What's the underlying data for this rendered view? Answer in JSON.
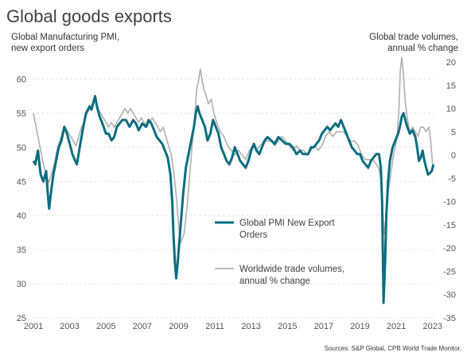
{
  "title": "Global goods exports",
  "source": "Sources: S&P Global, CPB World Trade Monitor.",
  "colors": {
    "pmi": "#0b6d80",
    "trade": "#b3b3b3",
    "grid": "#e3e3e3",
    "text": "#404040"
  },
  "chart_data": {
    "type": "line",
    "title": "Global goods exports",
    "left_axis": {
      "label_lines": [
        "Global Manufacturing PMI,",
        "new export orders"
      ],
      "range": [
        25,
        62.5
      ],
      "ticks": [
        25,
        30,
        35,
        40,
        45,
        50,
        55,
        60
      ]
    },
    "right_axis": {
      "label_lines": [
        "Global trade volumes,",
        "annual % change"
      ],
      "range": [
        -35,
        20
      ],
      "ticks": [
        -35,
        -30,
        -25,
        -20,
        -15,
        -10,
        -5,
        0,
        5,
        10,
        15,
        20
      ]
    },
    "x_axis": {
      "range": [
        2001,
        2023.1
      ],
      "ticks": [
        2001,
        2003,
        2005,
        2007,
        2009,
        2011,
        2013,
        2015,
        2017,
        2019,
        2021,
        2023
      ]
    },
    "grid": "horizontal dashed",
    "legend_placement": "middle-right",
    "series": [
      {
        "name_lines": [
          "Global PMI New Export",
          "Orders"
        ],
        "axis": "left",
        "color": "#0b6d80",
        "points": [
          [
            2001.0,
            48
          ],
          [
            2001.1,
            47.5
          ],
          [
            2001.25,
            49.5
          ],
          [
            2001.4,
            46
          ],
          [
            2001.55,
            45
          ],
          [
            2001.7,
            46.5
          ],
          [
            2001.8,
            43
          ],
          [
            2001.87,
            41
          ],
          [
            2001.95,
            43
          ],
          [
            2002.1,
            46
          ],
          [
            2002.25,
            48
          ],
          [
            2002.4,
            50
          ],
          [
            2002.55,
            51
          ],
          [
            2002.7,
            53
          ],
          [
            2002.85,
            52
          ],
          [
            2003.0,
            50.5
          ],
          [
            2003.15,
            49
          ],
          [
            2003.3,
            48
          ],
          [
            2003.4,
            47.5
          ],
          [
            2003.55,
            50
          ],
          [
            2003.75,
            53
          ],
          [
            2003.9,
            55
          ],
          [
            2004.1,
            56
          ],
          [
            2004.2,
            55.5
          ],
          [
            2004.3,
            56.5
          ],
          [
            2004.4,
            57.5
          ],
          [
            2004.5,
            56
          ],
          [
            2004.65,
            54.5
          ],
          [
            2004.8,
            53.5
          ],
          [
            2005.0,
            52
          ],
          [
            2005.15,
            52
          ],
          [
            2005.3,
            51
          ],
          [
            2005.45,
            51.5
          ],
          [
            2005.6,
            53
          ],
          [
            2005.75,
            53.5
          ],
          [
            2005.9,
            54
          ],
          [
            2006.1,
            54
          ],
          [
            2006.3,
            53
          ],
          [
            2006.5,
            54
          ],
          [
            2006.65,
            53.5
          ],
          [
            2006.8,
            52.5
          ],
          [
            2007.0,
            53.5
          ],
          [
            2007.2,
            53
          ],
          [
            2007.35,
            54
          ],
          [
            2007.5,
            53.5
          ],
          [
            2007.65,
            52.5
          ],
          [
            2007.8,
            51.5
          ],
          [
            2007.95,
            51
          ],
          [
            2008.1,
            50.5
          ],
          [
            2008.25,
            49.5
          ],
          [
            2008.4,
            48.5
          ],
          [
            2008.55,
            46
          ],
          [
            2008.65,
            42
          ],
          [
            2008.72,
            37
          ],
          [
            2008.8,
            33
          ],
          [
            2008.87,
            30.8
          ],
          [
            2008.95,
            33
          ],
          [
            2009.1,
            38
          ],
          [
            2009.25,
            43
          ],
          [
            2009.4,
            47
          ],
          [
            2009.55,
            49
          ],
          [
            2009.7,
            51
          ],
          [
            2009.85,
            53
          ],
          [
            2009.95,
            55
          ],
          [
            2010.05,
            56
          ],
          [
            2010.15,
            55
          ],
          [
            2010.3,
            54
          ],
          [
            2010.45,
            53
          ],
          [
            2010.6,
            51
          ],
          [
            2010.75,
            52
          ],
          [
            2010.9,
            54
          ],
          [
            2011.05,
            53
          ],
          [
            2011.2,
            52
          ],
          [
            2011.35,
            50
          ],
          [
            2011.5,
            49
          ],
          [
            2011.65,
            48
          ],
          [
            2011.8,
            47.5
          ],
          [
            2011.95,
            48.5
          ],
          [
            2012.1,
            50
          ],
          [
            2012.25,
            49
          ],
          [
            2012.4,
            48
          ],
          [
            2012.55,
            47.5
          ],
          [
            2012.7,
            47
          ],
          [
            2012.85,
            48
          ],
          [
            2013.0,
            49.5
          ],
          [
            2013.15,
            50.5
          ],
          [
            2013.3,
            49.5
          ],
          [
            2013.45,
            49
          ],
          [
            2013.6,
            50
          ],
          [
            2013.75,
            51
          ],
          [
            2013.9,
            51.5
          ],
          [
            2014.1,
            51
          ],
          [
            2014.3,
            50.5
          ],
          [
            2014.5,
            51.5
          ],
          [
            2014.7,
            51
          ],
          [
            2014.9,
            50.5
          ],
          [
            2015.1,
            50.5
          ],
          [
            2015.3,
            50
          ],
          [
            2015.5,
            49
          ],
          [
            2015.7,
            49.5
          ],
          [
            2015.85,
            49
          ],
          [
            2016.0,
            49
          ],
          [
            2016.15,
            49
          ],
          [
            2016.3,
            50
          ],
          [
            2016.45,
            50
          ],
          [
            2016.6,
            50.5
          ],
          [
            2016.75,
            51
          ],
          [
            2016.9,
            52
          ],
          [
            2017.05,
            52.5
          ],
          [
            2017.2,
            53
          ],
          [
            2017.35,
            52.5
          ],
          [
            2017.5,
            53
          ],
          [
            2017.65,
            53.5
          ],
          [
            2017.8,
            53
          ],
          [
            2017.95,
            54
          ],
          [
            2018.1,
            53
          ],
          [
            2018.25,
            52
          ],
          [
            2018.4,
            51
          ],
          [
            2018.55,
            50
          ],
          [
            2018.7,
            49.5
          ],
          [
            2018.85,
            49
          ],
          [
            2019.0,
            49
          ],
          [
            2019.15,
            48
          ],
          [
            2019.3,
            47.5
          ],
          [
            2019.45,
            47
          ],
          [
            2019.6,
            48
          ],
          [
            2019.75,
            48.5
          ],
          [
            2019.9,
            49
          ],
          [
            2020.05,
            49
          ],
          [
            2020.15,
            47
          ],
          [
            2020.22,
            42
          ],
          [
            2020.3,
            27.2
          ],
          [
            2020.38,
            33
          ],
          [
            2020.45,
            40
          ],
          [
            2020.55,
            45
          ],
          [
            2020.65,
            48
          ],
          [
            2020.8,
            50
          ],
          [
            2020.95,
            51
          ],
          [
            2021.1,
            52
          ],
          [
            2021.2,
            53
          ],
          [
            2021.3,
            54.5
          ],
          [
            2021.4,
            55
          ],
          [
            2021.5,
            54
          ],
          [
            2021.6,
            53
          ],
          [
            2021.75,
            52
          ],
          [
            2021.9,
            52.5
          ],
          [
            2022.05,
            51.5
          ],
          [
            2022.15,
            50
          ],
          [
            2022.25,
            48
          ],
          [
            2022.35,
            48.5
          ],
          [
            2022.45,
            49.5
          ],
          [
            2022.55,
            48
          ],
          [
            2022.65,
            47
          ],
          [
            2022.75,
            46
          ],
          [
            2022.85,
            46.2
          ],
          [
            2022.95,
            46.5
          ],
          [
            2023.05,
            47.5
          ]
        ]
      },
      {
        "name_lines": [
          "Worldwide trade volumes,",
          "annual % change"
        ],
        "axis": "right",
        "color": "#b3b3b3",
        "points": [
          [
            2001.0,
            9
          ],
          [
            2001.1,
            7
          ],
          [
            2001.25,
            4
          ],
          [
            2001.4,
            1
          ],
          [
            2001.55,
            -2
          ],
          [
            2001.7,
            -4
          ],
          [
            2001.85,
            -6
          ],
          [
            2002.0,
            -4
          ],
          [
            2002.15,
            -2
          ],
          [
            2002.3,
            1
          ],
          [
            2002.45,
            3
          ],
          [
            2002.6,
            5
          ],
          [
            2002.75,
            6
          ],
          [
            2002.9,
            5
          ],
          [
            2003.05,
            4
          ],
          [
            2003.2,
            3
          ],
          [
            2003.35,
            2
          ],
          [
            2003.5,
            4
          ],
          [
            2003.65,
            6
          ],
          [
            2003.8,
            7
          ],
          [
            2003.95,
            9
          ],
          [
            2004.1,
            10
          ],
          [
            2004.25,
            11
          ],
          [
            2004.4,
            12
          ],
          [
            2004.55,
            10
          ],
          [
            2004.7,
            9
          ],
          [
            2004.85,
            8
          ],
          [
            2005.0,
            7
          ],
          [
            2005.15,
            6
          ],
          [
            2005.3,
            7
          ],
          [
            2005.45,
            6
          ],
          [
            2005.6,
            7
          ],
          [
            2005.75,
            8
          ],
          [
            2005.9,
            9
          ],
          [
            2006.05,
            10
          ],
          [
            2006.2,
            9
          ],
          [
            2006.35,
            10
          ],
          [
            2006.5,
            9
          ],
          [
            2006.65,
            8
          ],
          [
            2006.8,
            7
          ],
          [
            2006.95,
            8
          ],
          [
            2007.1,
            7
          ],
          [
            2007.25,
            6
          ],
          [
            2007.4,
            7
          ],
          [
            2007.55,
            8
          ],
          [
            2007.7,
            7
          ],
          [
            2007.85,
            6
          ],
          [
            2008.0,
            5
          ],
          [
            2008.15,
            6
          ],
          [
            2008.3,
            4
          ],
          [
            2008.45,
            2
          ],
          [
            2008.6,
            0
          ],
          [
            2008.75,
            -4
          ],
          [
            2008.9,
            -10
          ],
          [
            2009.0,
            -15
          ],
          [
            2009.1,
            -19
          ],
          [
            2009.2,
            -18
          ],
          [
            2009.3,
            -17
          ],
          [
            2009.45,
            -12
          ],
          [
            2009.6,
            -5
          ],
          [
            2009.75,
            2
          ],
          [
            2009.9,
            9
          ],
          [
            2010.0,
            14
          ],
          [
            2010.1,
            16
          ],
          [
            2010.2,
            18.5
          ],
          [
            2010.3,
            16
          ],
          [
            2010.4,
            14
          ],
          [
            2010.5,
            13
          ],
          [
            2010.65,
            11
          ],
          [
            2010.8,
            12
          ],
          [
            2010.95,
            9
          ],
          [
            2011.1,
            7
          ],
          [
            2011.3,
            5
          ],
          [
            2011.5,
            4
          ],
          [
            2011.7,
            2
          ],
          [
            2011.9,
            1
          ],
          [
            2012.1,
            0
          ],
          [
            2012.3,
            1
          ],
          [
            2012.5,
            0
          ],
          [
            2012.7,
            -1
          ],
          [
            2012.9,
            1
          ],
          [
            2013.1,
            2
          ],
          [
            2013.3,
            1
          ],
          [
            2013.5,
            2
          ],
          [
            2013.7,
            3
          ],
          [
            2013.9,
            3
          ],
          [
            2014.1,
            3
          ],
          [
            2014.3,
            2
          ],
          [
            2014.5,
            3
          ],
          [
            2014.7,
            4
          ],
          [
            2014.9,
            3
          ],
          [
            2015.1,
            2
          ],
          [
            2015.3,
            1
          ],
          [
            2015.5,
            2
          ],
          [
            2015.7,
            1
          ],
          [
            2015.9,
            1
          ],
          [
            2016.1,
            0
          ],
          [
            2016.3,
            1
          ],
          [
            2016.5,
            2
          ],
          [
            2016.7,
            1
          ],
          [
            2016.9,
            2
          ],
          [
            2017.1,
            4
          ],
          [
            2017.3,
            5
          ],
          [
            2017.5,
            4
          ],
          [
            2017.7,
            5
          ],
          [
            2017.9,
            5
          ],
          [
            2018.1,
            5
          ],
          [
            2018.3,
            4
          ],
          [
            2018.5,
            3
          ],
          [
            2018.7,
            3
          ],
          [
            2018.9,
            2
          ],
          [
            2019.1,
            0
          ],
          [
            2019.3,
            -1
          ],
          [
            2019.5,
            -1
          ],
          [
            2019.7,
            -1
          ],
          [
            2019.9,
            -2
          ],
          [
            2020.05,
            -3
          ],
          [
            2020.15,
            -5
          ],
          [
            2020.25,
            -12
          ],
          [
            2020.33,
            -17
          ],
          [
            2020.42,
            -14
          ],
          [
            2020.55,
            -8
          ],
          [
            2020.7,
            -4
          ],
          [
            2020.85,
            0
          ],
          [
            2020.95,
            2
          ],
          [
            2021.05,
            4
          ],
          [
            2021.15,
            10
          ],
          [
            2021.22,
            18
          ],
          [
            2021.3,
            21
          ],
          [
            2021.38,
            18
          ],
          [
            2021.48,
            12
          ],
          [
            2021.6,
            8
          ],
          [
            2021.75,
            5
          ],
          [
            2021.9,
            6
          ],
          [
            2022.05,
            5
          ],
          [
            2022.2,
            4
          ],
          [
            2022.35,
            6
          ],
          [
            2022.5,
            6
          ],
          [
            2022.65,
            5
          ],
          [
            2022.8,
            6
          ],
          [
            2022.9,
            3
          ],
          [
            2023.0,
            -2
          ]
        ]
      }
    ]
  }
}
